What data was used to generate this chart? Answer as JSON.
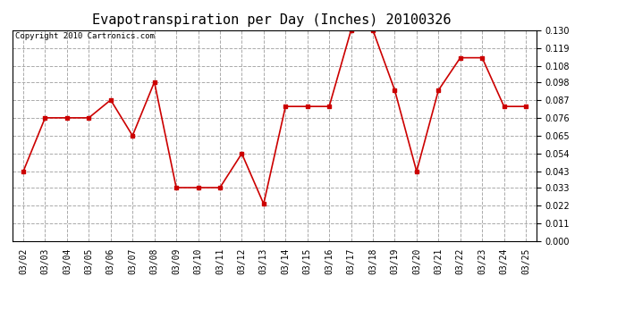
{
  "title": "Evapotranspiration per Day (Inches) 20100326",
  "copyright_text": "Copyright 2010 Cartronics.com",
  "dates": [
    "03/02",
    "03/03",
    "03/04",
    "03/05",
    "03/06",
    "03/07",
    "03/08",
    "03/09",
    "03/10",
    "03/11",
    "03/12",
    "03/13",
    "03/14",
    "03/15",
    "03/16",
    "03/17",
    "03/18",
    "03/19",
    "03/20",
    "03/21",
    "03/22",
    "03/23",
    "03/24",
    "03/25"
  ],
  "values": [
    0.043,
    0.076,
    0.076,
    0.076,
    0.087,
    0.065,
    0.098,
    0.033,
    0.033,
    0.033,
    0.054,
    0.023,
    0.083,
    0.083,
    0.083,
    0.13,
    0.13,
    0.093,
    0.043,
    0.093,
    0.113,
    0.113,
    0.083,
    0.083
  ],
  "line_color": "#cc0000",
  "marker": "s",
  "marker_size": 3,
  "ylim": [
    0.0,
    0.13
  ],
  "yticks": [
    0.0,
    0.011,
    0.022,
    0.033,
    0.043,
    0.054,
    0.065,
    0.076,
    0.087,
    0.098,
    0.108,
    0.119,
    0.13
  ],
  "background_color": "#ffffff",
  "grid_color": "#aaaaaa",
  "title_fontsize": 11,
  "tick_fontsize": 7,
  "copyright_fontsize": 6.5
}
